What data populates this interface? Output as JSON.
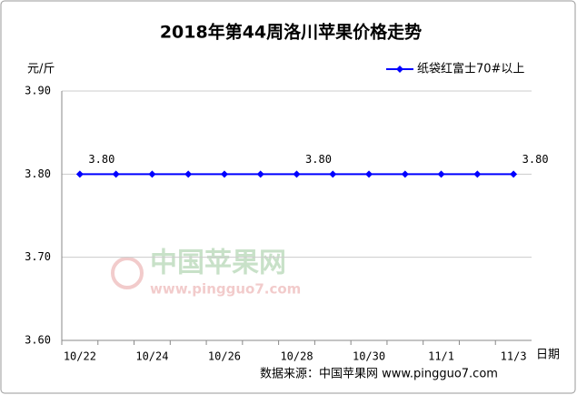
{
  "chart_data": {
    "type": "line",
    "title": "2018年第44周洛川苹果价格走势",
    "y_axis_label": "元/斤",
    "x_axis_label": "日期",
    "source": "数据来源：中国苹果网 www.pingguo7.com",
    "watermark": [
      "中国苹果网",
      "www.pingguo7.com"
    ],
    "categories": [
      "10/22",
      null,
      "10/24",
      null,
      "10/26",
      null,
      "10/28",
      null,
      "10/30",
      null,
      "11/1",
      null,
      "11/3"
    ],
    "series": [
      {
        "name": "纸袋红富士70#以上",
        "color": "#0000ff",
        "values": [
          3.8,
          3.8,
          3.8,
          3.8,
          3.8,
          3.8,
          3.8,
          3.8,
          3.8,
          3.8,
          3.8,
          3.8,
          3.8
        ],
        "value_labels": [
          "3.80",
          null,
          null,
          null,
          null,
          null,
          "3.80",
          null,
          null,
          null,
          null,
          null,
          "3.80"
        ]
      }
    ],
    "ylim": [
      3.6,
      3.9
    ],
    "yticks": [
      {
        "value": 3.6,
        "label": "3.60"
      },
      {
        "value": 3.7,
        "label": "3.70"
      },
      {
        "value": 3.8,
        "label": "3.80"
      },
      {
        "value": 3.9,
        "label": "3.90"
      }
    ],
    "grid": true,
    "legend": "top-right"
  }
}
